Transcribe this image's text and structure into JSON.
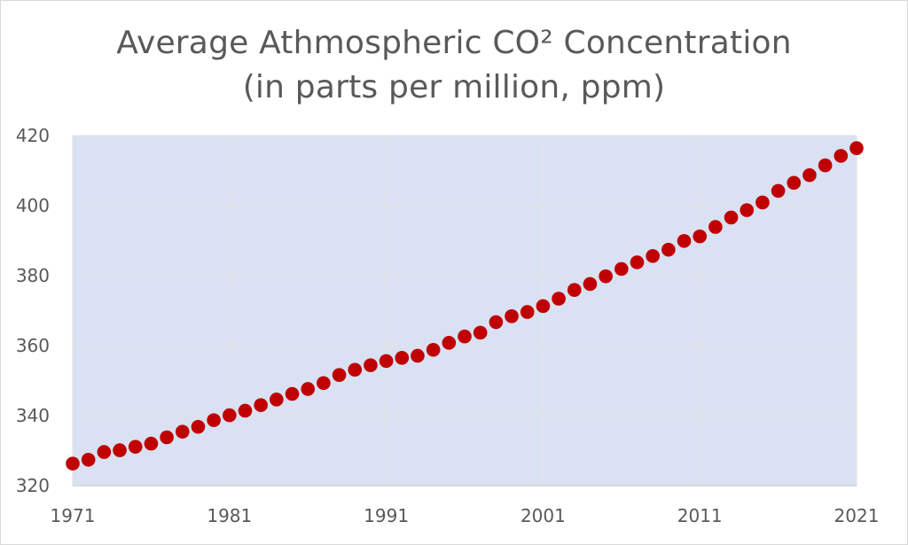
{
  "chart_data": {
    "type": "scatter",
    "title": "Average Athmospheric CO² Concentration",
    "subtitle": "(in parts per million, ppm)",
    "xlabel": "",
    "ylabel": "",
    "xlim": [
      1971,
      2021
    ],
    "ylim": [
      320,
      420
    ],
    "x_ticks": [
      1971,
      1981,
      1991,
      2001,
      2011,
      2021
    ],
    "y_ticks": [
      320,
      340,
      360,
      380,
      400,
      420
    ],
    "grid": true,
    "legend": "none",
    "colors": {
      "plot_background": "#d9e1f2",
      "grid": "#e3e3e3",
      "marker": "#c00000",
      "text": "#595959"
    },
    "x": [
      1971,
      1972,
      1973,
      1974,
      1975,
      1976,
      1977,
      1978,
      1979,
      1980,
      1981,
      1982,
      1983,
      1984,
      1985,
      1986,
      1987,
      1988,
      1989,
      1990,
      1991,
      1992,
      1993,
      1994,
      1995,
      1996,
      1997,
      1998,
      1999,
      2000,
      2001,
      2002,
      2003,
      2004,
      2005,
      2006,
      2007,
      2008,
      2009,
      2010,
      2011,
      2012,
      2013,
      2014,
      2015,
      2016,
      2017,
      2018,
      2019,
      2020,
      2021
    ],
    "y": [
      326.3,
      327.4,
      329.6,
      330.1,
      331.1,
      332.0,
      333.8,
      335.4,
      336.8,
      338.7,
      340.1,
      341.4,
      343.0,
      344.6,
      346.2,
      347.6,
      349.3,
      351.6,
      353.1,
      354.4,
      355.6,
      356.5,
      357.1,
      358.8,
      360.8,
      362.6,
      363.7,
      366.7,
      368.4,
      369.6,
      371.3,
      373.4,
      375.9,
      377.6,
      379.8,
      381.9,
      383.8,
      385.6,
      387.4,
      389.9,
      391.2,
      393.9,
      396.6,
      398.7,
      400.9,
      404.2,
      406.5,
      408.7,
      411.5,
      414.2,
      416.4
    ]
  }
}
